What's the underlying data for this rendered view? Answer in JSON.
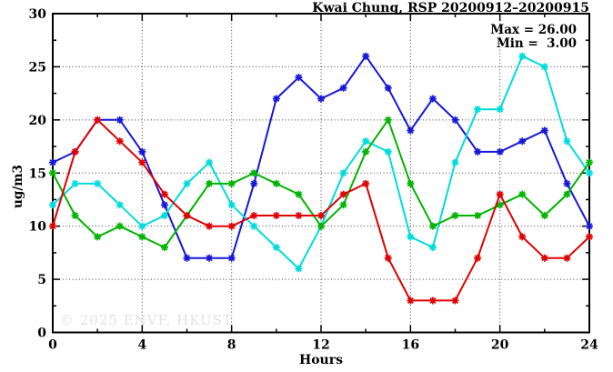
{
  "header": {
    "title": "Kwai Chung, RSP 20200912–20200915"
  },
  "annotation": {
    "max_label": "Max = 26.00",
    "min_label": "Min =  3.00"
  },
  "watermark": "© 2025 ENVF, HKUST",
  "chart_data": {
    "type": "line",
    "title": "Kwai Chung, RSP 20200912–20200915",
    "xlabel": "Hours",
    "ylabel": "ug/m3",
    "xlim": [
      0,
      24
    ],
    "ylim": [
      0,
      30
    ],
    "x_major_ticks": [
      0,
      4,
      8,
      12,
      16,
      20,
      24
    ],
    "x_minor_step": 2,
    "y_major_ticks": [
      0,
      5,
      10,
      15,
      20,
      25,
      30
    ],
    "y_minor_step": 2.5,
    "grid": true,
    "legend": "none",
    "marker": "star",
    "stats": {
      "max": 26.0,
      "min": 3.0
    },
    "x": [
      0,
      1,
      2,
      3,
      4,
      5,
      6,
      7,
      8,
      9,
      10,
      11,
      12,
      13,
      14,
      15,
      16,
      17,
      18,
      19,
      20,
      21,
      22,
      23,
      24
    ],
    "series": [
      {
        "name": "series-blue",
        "color": "#1717d9",
        "values": [
          16,
          17,
          20,
          20,
          17,
          12,
          7,
          7,
          7,
          14,
          22,
          24,
          22,
          23,
          26,
          23,
          19,
          22,
          20,
          17,
          17,
          18,
          19,
          14,
          10
        ]
      },
      {
        "name": "series-cyan",
        "color": "#00dcdc",
        "values": [
          12,
          14,
          14,
          12,
          10,
          11,
          14,
          16,
          12,
          10,
          8,
          6,
          10,
          15,
          18,
          17,
          9,
          8,
          16,
          21,
          21,
          26,
          25,
          18,
          15
        ]
      },
      {
        "name": "series-green",
        "color": "#00b400",
        "values": [
          15,
          11,
          9,
          10,
          9,
          8,
          11,
          14,
          14,
          15,
          14,
          13,
          10,
          12,
          17,
          20,
          14,
          10,
          11,
          11,
          12,
          13,
          11,
          13,
          16
        ]
      },
      {
        "name": "series-red",
        "color": "#e00000",
        "values": [
          10,
          17,
          20,
          18,
          16,
          13,
          11,
          10,
          10,
          11,
          11,
          11,
          11,
          13,
          14,
          7,
          3,
          3,
          3,
          7,
          13,
          9,
          7,
          7,
          9
        ]
      }
    ],
    "plot_colors": {
      "grid": "#3c3c3c",
      "border": "#000000",
      "watermark": "#e2e2e2"
    }
  }
}
